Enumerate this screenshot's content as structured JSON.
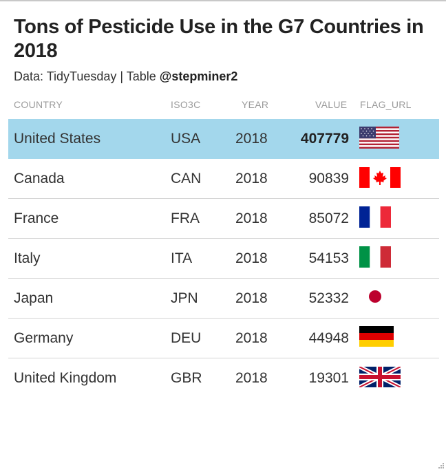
{
  "title": "Tons of Pesticide Use in the G7 Countries in 2018",
  "subtitle": {
    "prefix": "Data: TidyTuesday | Table ",
    "handle": "@stepminer2"
  },
  "columns": {
    "country": "COUNTRY",
    "iso3c": "ISO3C",
    "year": "YEAR",
    "value": "VALUE",
    "flag_url": "FLAG_URL"
  },
  "highlight_color": "#a3d7ec",
  "chart_data": {
    "type": "table",
    "title": "Tons of Pesticide Use in the G7 Countries in 2018",
    "subtitle": "Data: TidyTuesday | Table @stepminer2",
    "columns": [
      "COUNTRY",
      "ISO3C",
      "YEAR",
      "VALUE",
      "FLAG_URL"
    ],
    "highlighted_row": 0,
    "rows": [
      {
        "country": "United States",
        "iso3c": "USA",
        "year": "2018",
        "value": "407779",
        "flag": "us-flag-icon"
      },
      {
        "country": "Canada",
        "iso3c": "CAN",
        "year": "2018",
        "value": "90839",
        "flag": "canada-flag-icon"
      },
      {
        "country": "France",
        "iso3c": "FRA",
        "year": "2018",
        "value": "85072",
        "flag": "france-flag-icon"
      },
      {
        "country": "Italy",
        "iso3c": "ITA",
        "year": "2018",
        "value": "54153",
        "flag": "italy-flag-icon"
      },
      {
        "country": "Japan",
        "iso3c": "JPN",
        "year": "2018",
        "value": "52332",
        "flag": "japan-flag-icon"
      },
      {
        "country": "Germany",
        "iso3c": "DEU",
        "year": "2018",
        "value": "44948",
        "flag": "germany-flag-icon"
      },
      {
        "country": "United Kingdom",
        "iso3c": "GBR",
        "year": "2018",
        "value": "19301",
        "flag": "uk-flag-icon"
      }
    ]
  }
}
